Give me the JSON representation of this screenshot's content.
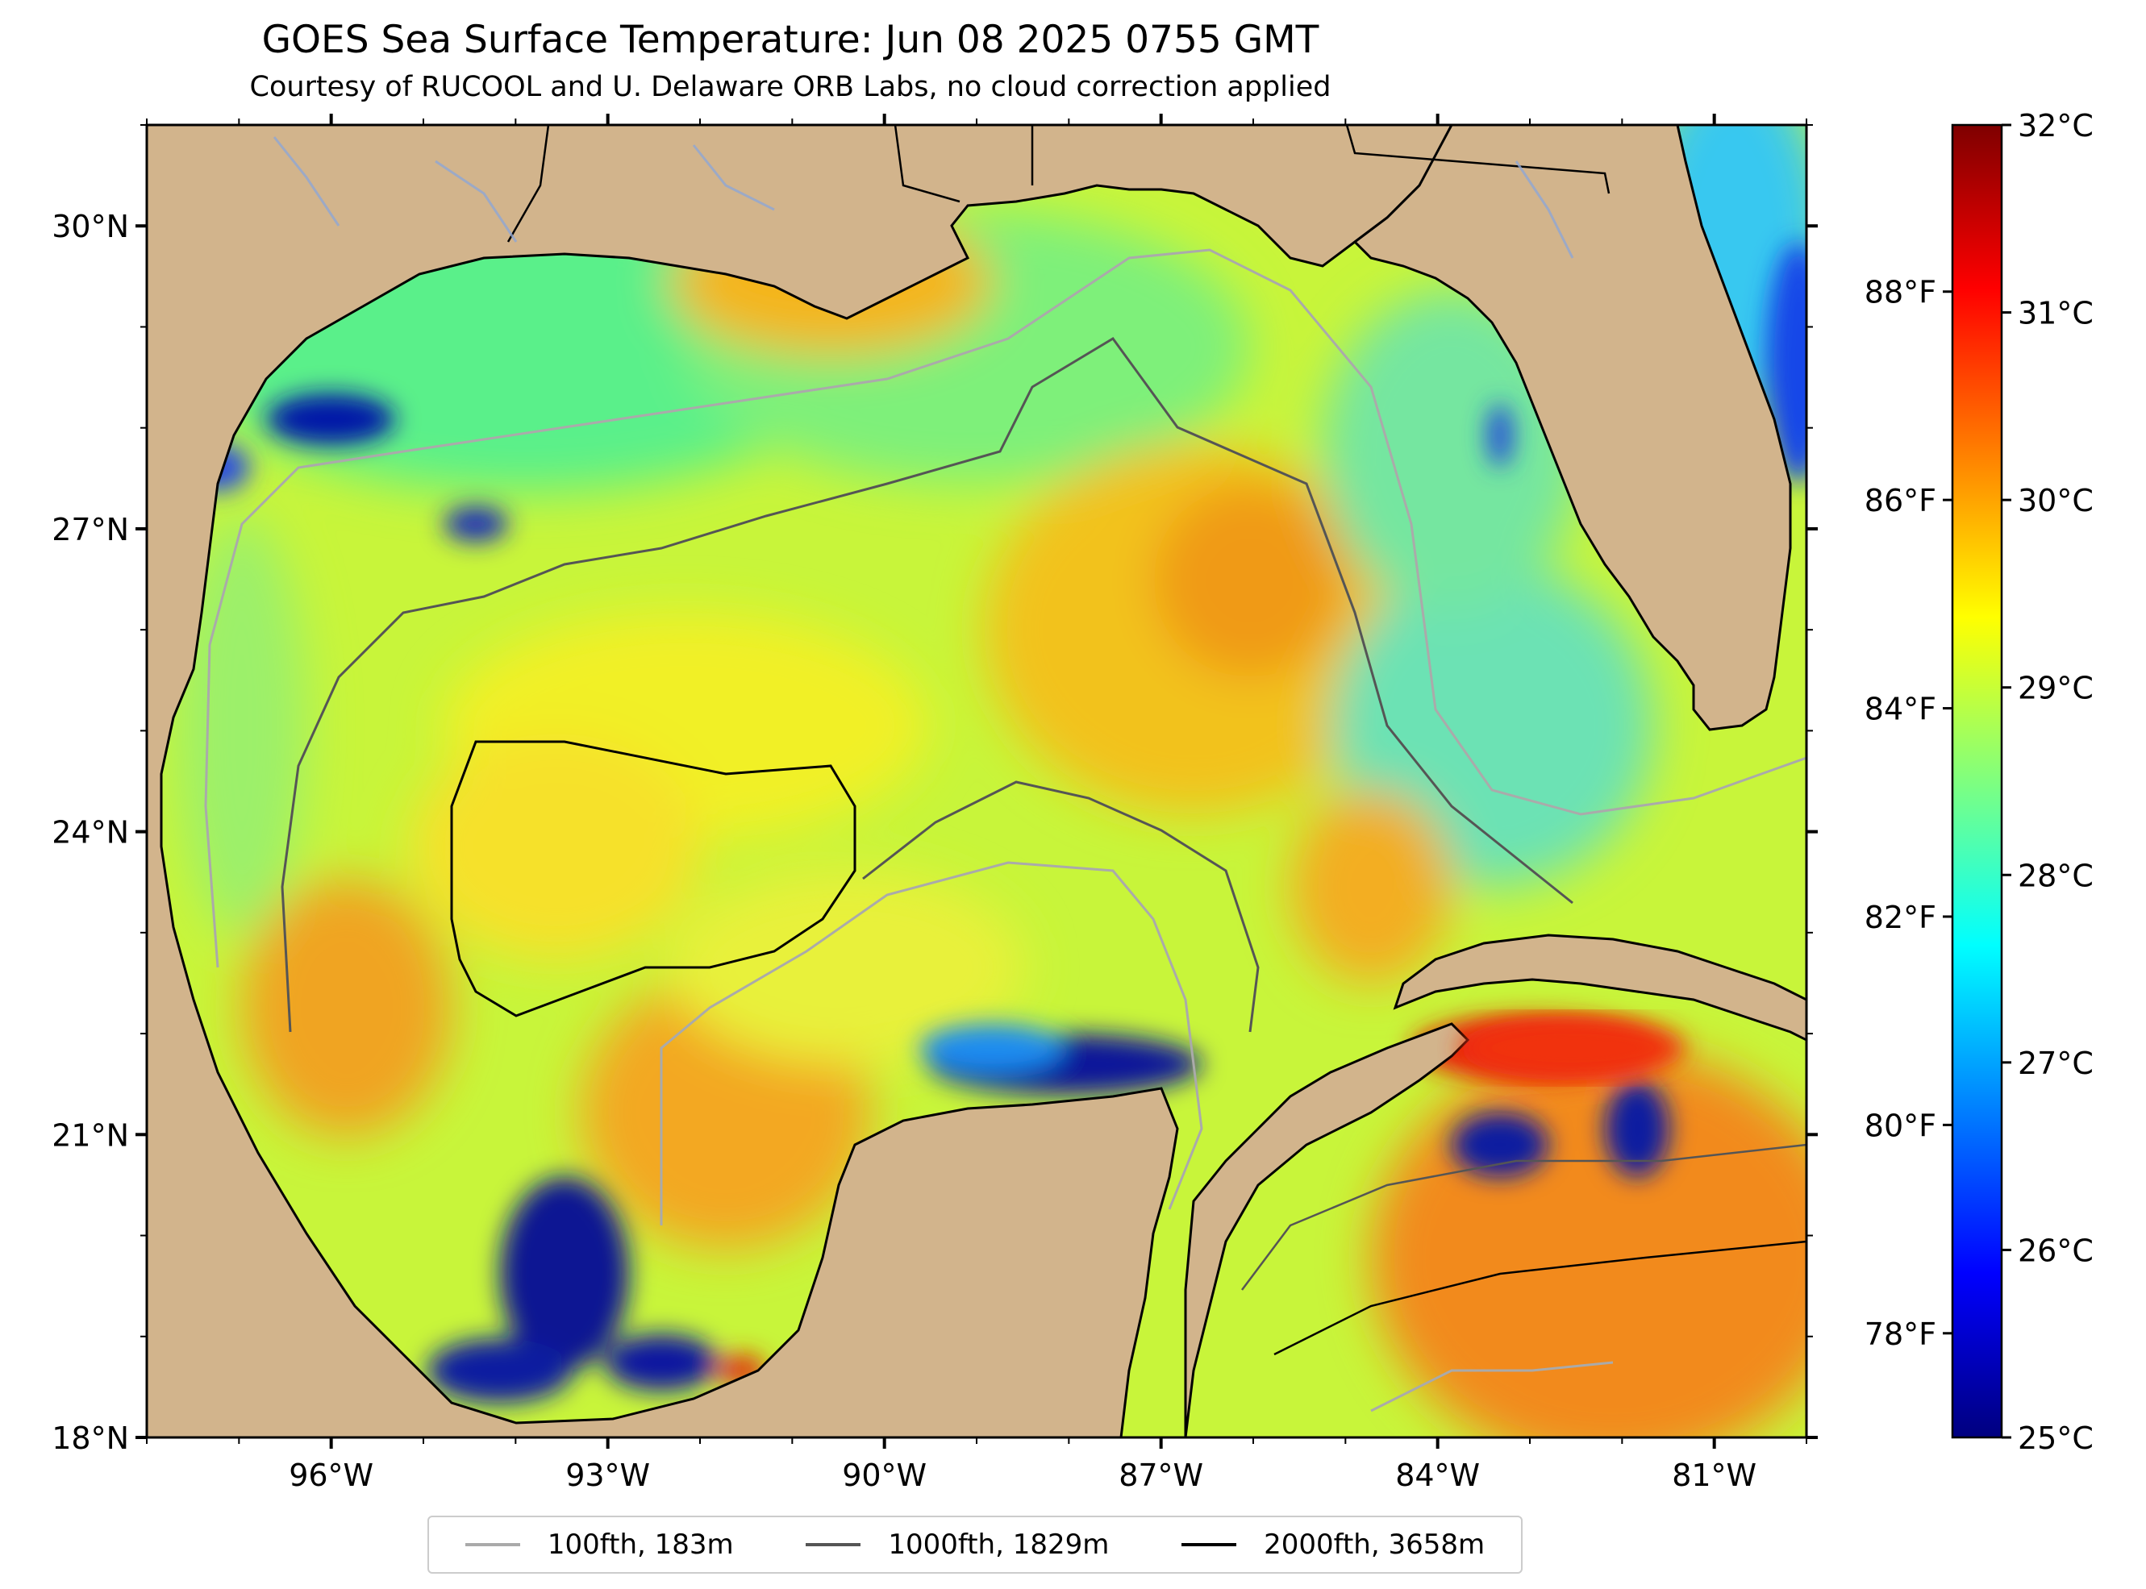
{
  "title": "GOES Sea Surface Temperature: Jun 08 2025 0755 GMT",
  "subtitle": "Courtesy of RUCOOL and U. Delaware ORB Labs, no cloud correction applied",
  "map": {
    "extent": {
      "lon": [
        -98,
        -80
      ],
      "lat": [
        18,
        31
      ]
    },
    "lat_labels": [
      {
        "value": 30,
        "label": "30°N"
      },
      {
        "value": 27,
        "label": "27°N"
      },
      {
        "value": 24,
        "label": "24°N"
      },
      {
        "value": 21,
        "label": "21°N"
      },
      {
        "value": 18,
        "label": "18°N"
      }
    ],
    "lon_labels": [
      {
        "value": -96,
        "label": "96°W"
      },
      {
        "value": -93,
        "label": "93°W"
      },
      {
        "value": -90,
        "label": "90°W"
      },
      {
        "value": -87,
        "label": "87°W"
      },
      {
        "value": -84,
        "label": "84°W"
      },
      {
        "value": -81,
        "label": "81°W"
      }
    ],
    "land_color": "#D2B48C",
    "land_labels": []
  },
  "colorbar": {
    "range_c": [
      25,
      32
    ],
    "celsius_ticks": [
      {
        "value": 32,
        "label": "32°C"
      },
      {
        "value": 31,
        "label": "31°C"
      },
      {
        "value": 30,
        "label": "30°C"
      },
      {
        "value": 29,
        "label": "29°C"
      },
      {
        "value": 28,
        "label": "28°C"
      },
      {
        "value": 27,
        "label": "27°C"
      },
      {
        "value": 26,
        "label": "26°C"
      },
      {
        "value": 25,
        "label": "25°C"
      }
    ],
    "fahrenheit_ticks": [
      {
        "value": 88,
        "label": "88°F"
      },
      {
        "value": 86,
        "label": "86°F"
      },
      {
        "value": 84,
        "label": "84°F"
      },
      {
        "value": 82,
        "label": "82°F"
      },
      {
        "value": 80,
        "label": "80°F"
      },
      {
        "value": 78,
        "label": "78°F"
      }
    ],
    "colormap": "jet"
  },
  "legend": {
    "items": [
      {
        "label": "100fth, 183m",
        "color": "#aaaaaa"
      },
      {
        "label": "1000fth, 1829m",
        "color": "#555555"
      },
      {
        "label": "2000fth, 3658m",
        "color": "#000000"
      }
    ]
  }
}
